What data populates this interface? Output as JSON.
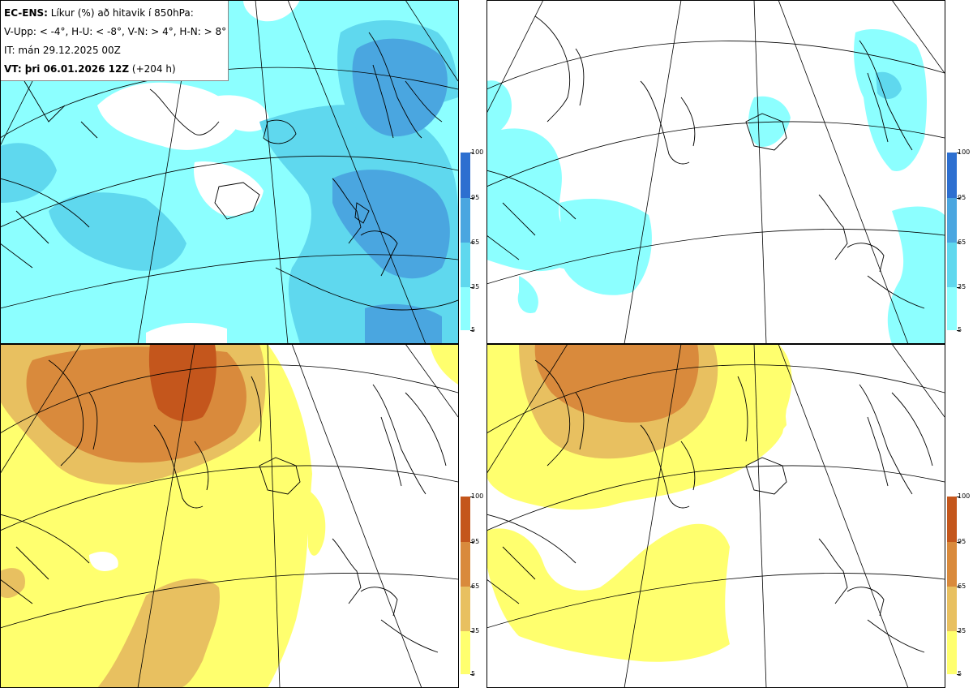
{
  "info": {
    "model_label": "EC-ENS:",
    "title_text": "Líkur (%) að hitavik í 850hPa:",
    "thresholds": "V-Upp: < -4°, H-U: < -8°, V-N: > 4°, H-N: > 8°",
    "init_time": "IT: mán 29.12.2025 00Z",
    "valid_label": "VT: þri 06.01.2026 12Z",
    "lead_time": "(+204 h)"
  },
  "colors": {
    "blue_scale": [
      "#8cffff",
      "#5fd8ee",
      "#4aa6e0",
      "#2d6fd0"
    ],
    "warm_scale": [
      "#ffff6e",
      "#e8c060",
      "#d98a3c",
      "#c4561c"
    ],
    "map_land_outline": "#000000",
    "background": "#ffffff"
  },
  "colorbars": {
    "ticks": [
      "100",
      "95",
      "65",
      "35",
      "5"
    ]
  },
  "panels": [
    {
      "quadrant": "top-left",
      "variable": "V-Upp"
    },
    {
      "quadrant": "top-right",
      "variable": "H-U"
    },
    {
      "quadrant": "bottom-left",
      "variable": "V-N"
    },
    {
      "quadrant": "bottom-right",
      "variable": "H-N"
    }
  ]
}
